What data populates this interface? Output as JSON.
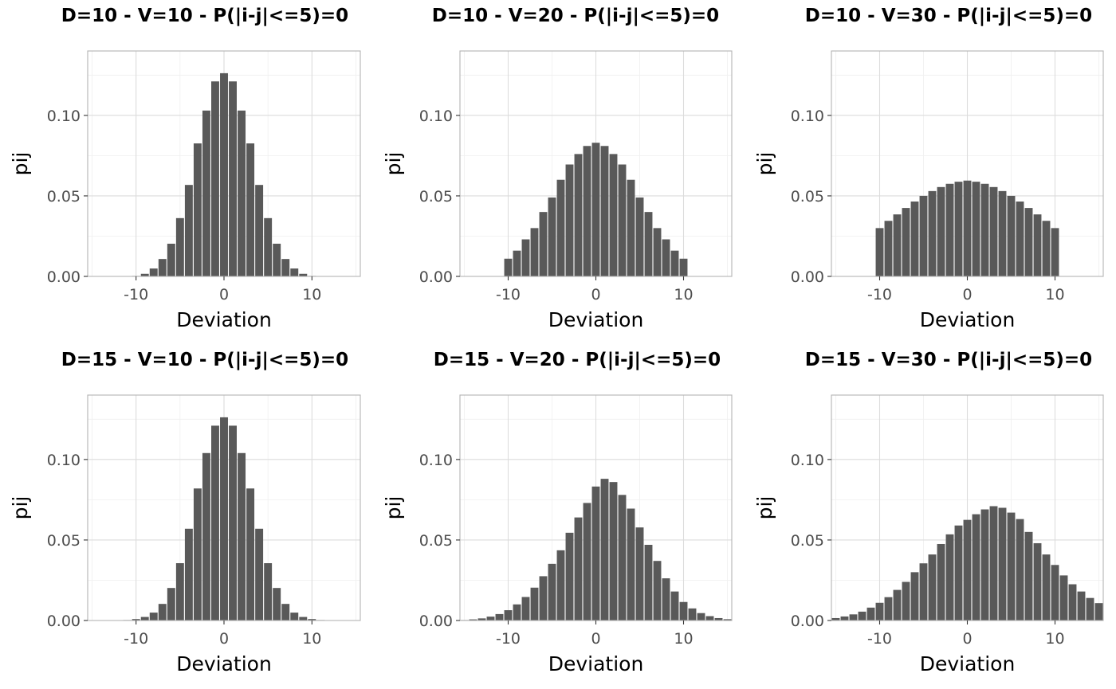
{
  "chart_data": [
    {
      "type": "bar",
      "title": "D=10 - V=10 - P(|i-j|<=5)=0",
      "xlabel": "Deviation",
      "ylabel": "pij",
      "xlim": [
        -15.5,
        15.5
      ],
      "ylim": [
        0,
        0.14
      ],
      "xticks": [
        -10,
        0,
        10
      ],
      "xtick_labels": [
        "-10",
        "0",
        "10"
      ],
      "yticks": [
        0,
        0.05,
        0.1
      ],
      "ytick_labels": [
        "0.00",
        "0.05",
        "0.10"
      ],
      "grid": true,
      "x": [
        -10,
        -9,
        -8,
        -7,
        -6,
        -5,
        -4,
        -3,
        -2,
        -1,
        0,
        1,
        2,
        3,
        4,
        5,
        6,
        7,
        8,
        9,
        10
      ],
      "values": [
        0.0003,
        0.0016,
        0.0049,
        0.0108,
        0.0203,
        0.0362,
        0.0568,
        0.0826,
        0.103,
        0.1211,
        0.1262,
        0.1211,
        0.103,
        0.0826,
        0.0568,
        0.0362,
        0.0203,
        0.0108,
        0.0049,
        0.0016,
        0.0003
      ]
    },
    {
      "type": "bar",
      "title": "D=10 - V=20 - P(|i-j|<=5)=0",
      "xlabel": "Deviation",
      "ylabel": "pij",
      "xlim": [
        -15.5,
        15.5
      ],
      "ylim": [
        0,
        0.14
      ],
      "xticks": [
        -10,
        0,
        10
      ],
      "xtick_labels": [
        "-10",
        "0",
        "10"
      ],
      "yticks": [
        0,
        0.05,
        0.1
      ],
      "ytick_labels": [
        "0.00",
        "0.05",
        "0.10"
      ],
      "grid": true,
      "x": [
        -10,
        -9,
        -8,
        -7,
        -6,
        -5,
        -4,
        -3,
        -2,
        -1,
        0,
        1,
        2,
        3,
        4,
        5,
        6,
        7,
        8,
        9,
        10
      ],
      "values": [
        0.011,
        0.016,
        0.023,
        0.03,
        0.04,
        0.049,
        0.06,
        0.0695,
        0.076,
        0.081,
        0.083,
        0.081,
        0.076,
        0.0695,
        0.06,
        0.049,
        0.04,
        0.03,
        0.023,
        0.016,
        0.011
      ]
    },
    {
      "type": "bar",
      "title": "D=10 - V=30 - P(|i-j|<=5)=0",
      "xlabel": "Deviation",
      "ylabel": "pij",
      "xlim": [
        -15.5,
        15.5
      ],
      "ylim": [
        0,
        0.14
      ],
      "xticks": [
        -10,
        0,
        10
      ],
      "xtick_labels": [
        "-10",
        "0",
        "10"
      ],
      "yticks": [
        0,
        0.05,
        0.1
      ],
      "ytick_labels": [
        "0.00",
        "0.05",
        "0.10"
      ],
      "grid": true,
      "x": [
        -10,
        -9,
        -8,
        -7,
        -6,
        -5,
        -4,
        -3,
        -2,
        -1,
        0,
        1,
        2,
        3,
        4,
        5,
        6,
        7,
        8,
        9,
        10
      ],
      "values": [
        0.03,
        0.0345,
        0.0385,
        0.0425,
        0.0465,
        0.05,
        0.053,
        0.0555,
        0.0575,
        0.0588,
        0.0595,
        0.0588,
        0.0575,
        0.0555,
        0.053,
        0.05,
        0.0465,
        0.0425,
        0.0385,
        0.0345,
        0.03
      ]
    },
    {
      "type": "bar",
      "title": "D=15 - V=10 - P(|i-j|<=5)=0",
      "xlabel": "Deviation",
      "ylabel": "pij",
      "xlim": [
        -15.5,
        15.5
      ],
      "ylim": [
        0,
        0.14
      ],
      "xticks": [
        -10,
        0,
        10
      ],
      "xtick_labels": [
        "-10",
        "0",
        "10"
      ],
      "yticks": [
        0,
        0.05,
        0.1
      ],
      "ytick_labels": [
        "0.00",
        "0.05",
        "0.10"
      ],
      "grid": true,
      "x": [
        -15,
        -14,
        -13,
        -12,
        -11,
        -10,
        -9,
        -8,
        -7,
        -6,
        -5,
        -4,
        -3,
        -2,
        -1,
        0,
        1,
        2,
        3,
        4,
        5,
        6,
        7,
        8,
        9,
        10,
        11,
        12,
        13,
        14,
        15
      ],
      "values": [
        0.0,
        0.0,
        0.0,
        0.0001,
        0.0003,
        0.0009,
        0.0022,
        0.0049,
        0.0103,
        0.0202,
        0.0356,
        0.057,
        0.082,
        0.104,
        0.121,
        0.1262,
        0.121,
        0.104,
        0.082,
        0.057,
        0.0356,
        0.0202,
        0.0103,
        0.0049,
        0.0022,
        0.0009,
        0.0003,
        0.0001,
        0.0,
        0.0,
        0.0
      ]
    },
    {
      "type": "bar",
      "title": "D=15 - V=20 - P(|i-j|<=5)=0",
      "xlabel": "Deviation",
      "ylabel": "pij",
      "xlim": [
        -15.5,
        15.5
      ],
      "ylim": [
        0,
        0.14
      ],
      "xticks": [
        -10,
        0,
        10
      ],
      "xtick_labels": [
        "-10",
        "0",
        "10"
      ],
      "yticks": [
        0,
        0.05,
        0.1
      ],
      "ytick_labels": [
        "0.00",
        "0.05",
        "0.10"
      ],
      "grid": true,
      "x": [
        -15,
        -14,
        -13,
        -12,
        -11,
        -10,
        -9,
        -8,
        -7,
        -6,
        -5,
        -4,
        -3,
        -2,
        -1,
        0,
        1,
        2,
        3,
        4,
        5,
        6,
        7,
        8,
        9,
        10,
        11,
        12,
        13,
        14,
        15
      ],
      "values": [
        0.0003,
        0.0007,
        0.0013,
        0.0024,
        0.004,
        0.0064,
        0.01,
        0.0146,
        0.0204,
        0.0275,
        0.0352,
        0.0436,
        0.0545,
        0.064,
        0.073,
        0.0832,
        0.088,
        0.086,
        0.078,
        0.0695,
        0.0578,
        0.047,
        0.037,
        0.0262,
        0.018,
        0.0115,
        0.0075,
        0.0046,
        0.0027,
        0.0015,
        0.0008
      ]
    },
    {
      "type": "bar",
      "title": "D=15 - V=30 - P(|i-j|<=5)=0",
      "xlabel": "Deviation",
      "ylabel": "pij",
      "xlim": [
        -15.5,
        15.5
      ],
      "ylim": [
        0,
        0.14
      ],
      "xticks": [
        -10,
        0,
        10
      ],
      "xtick_labels": [
        "-10",
        "0",
        "10"
      ],
      "yticks": [
        0,
        0.05,
        0.1
      ],
      "ytick_labels": [
        "0.00",
        "0.05",
        "0.10"
      ],
      "grid": true,
      "x": [
        -15,
        -14,
        -13,
        -12,
        -11,
        -10,
        -9,
        -8,
        -7,
        -6,
        -5,
        -4,
        -3,
        -2,
        -1,
        0,
        1,
        2,
        3,
        4,
        5,
        6,
        7,
        8,
        9,
        10,
        11,
        12,
        13,
        14,
        15
      ],
      "values": [
        0.0015,
        0.0025,
        0.0038,
        0.0055,
        0.008,
        0.011,
        0.0145,
        0.019,
        0.024,
        0.03,
        0.0355,
        0.041,
        0.0475,
        0.0535,
        0.059,
        0.0625,
        0.066,
        0.069,
        0.071,
        0.07,
        0.067,
        0.063,
        0.055,
        0.048,
        0.041,
        0.0345,
        0.028,
        0.0225,
        0.018,
        0.014,
        0.0108
      ]
    }
  ]
}
